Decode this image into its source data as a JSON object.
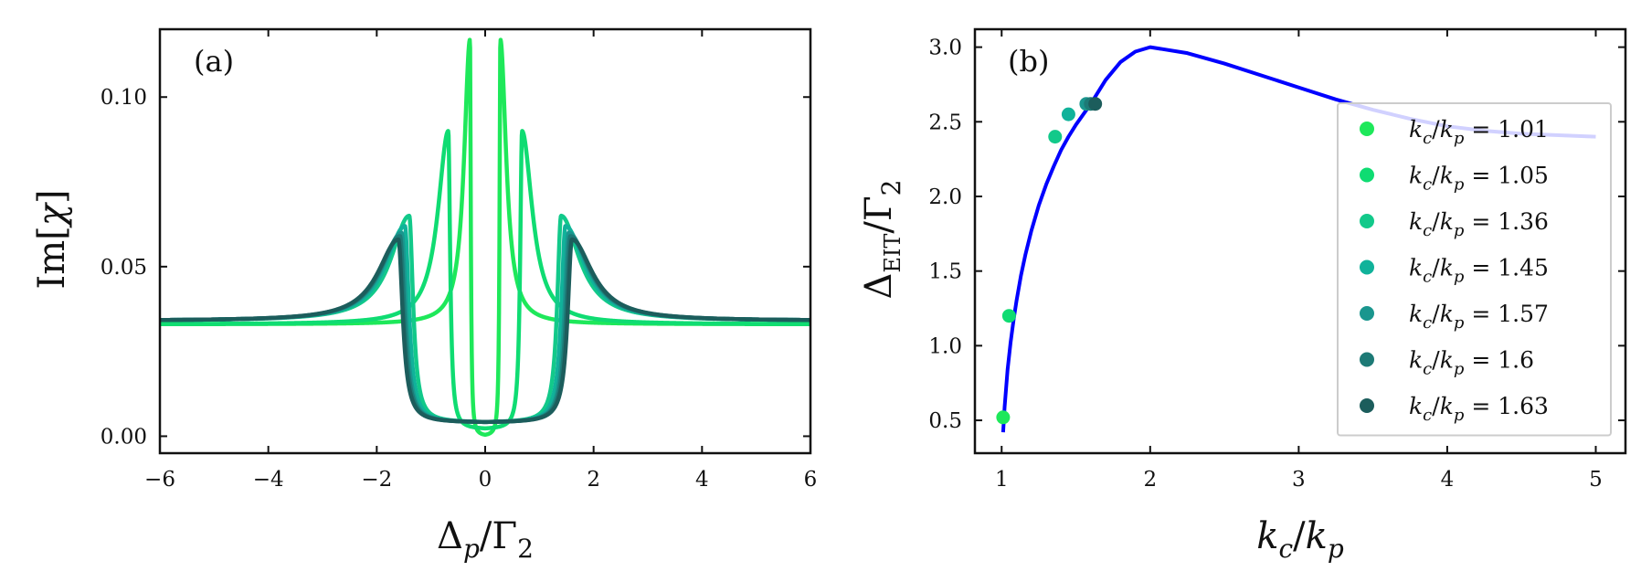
{
  "chart_data": [
    {
      "type": "line",
      "panel_label": "(a)",
      "xlabel": "Δp/Γ2",
      "ylabel": "Im[χ]",
      "xlim": [
        -6,
        6
      ],
      "ylim": [
        -0.005,
        0.12
      ],
      "xticks": [
        -6,
        -4,
        -2,
        0,
        2,
        4,
        6
      ],
      "xtick_labels": [
        "−6",
        "−4",
        "−2",
        "0",
        "2",
        "4",
        "6"
      ],
      "yticks": [
        0.0,
        0.05,
        0.1
      ],
      "ytick_labels": [
        "0.00",
        "0.05",
        "0.10"
      ],
      "grid": false,
      "series": [
        {
          "color": "#1ee85a",
          "peak_x": 0.28,
          "peak_y": 0.117,
          "dip_y": 0.0,
          "baseline": 0.033
        },
        {
          "color": "#0fdc72",
          "peak_x": 0.68,
          "peak_y": 0.09,
          "dip_y": 0.002,
          "baseline": 0.033
        },
        {
          "color": "#12c98a",
          "peak_x": 1.4,
          "peak_y": 0.065,
          "dip_y": 0.004,
          "baseline": 0.034
        },
        {
          "color": "#10b29a",
          "peak_x": 1.48,
          "peak_y": 0.062,
          "dip_y": 0.004,
          "baseline": 0.034
        },
        {
          "color": "#1a968e",
          "peak_x": 1.54,
          "peak_y": 0.06,
          "dip_y": 0.004,
          "baseline": 0.034
        },
        {
          "color": "#1d7a76",
          "peak_x": 1.57,
          "peak_y": 0.059,
          "dip_y": 0.004,
          "baseline": 0.034
        },
        {
          "color": "#1c5d5c",
          "peak_x": 1.6,
          "peak_y": 0.058,
          "dip_y": 0.004,
          "baseline": 0.034
        }
      ]
    },
    {
      "type": "line+scatter",
      "panel_label": "(b)",
      "xlabel": "kc/kp",
      "ylabel": "ΔEIT/Γ2",
      "xlim": [
        0.82,
        5.2
      ],
      "ylim": [
        0.28,
        3.12
      ],
      "xticks": [
        1,
        2,
        3,
        4,
        5
      ],
      "xtick_labels": [
        "1",
        "2",
        "3",
        "4",
        "5"
      ],
      "yticks": [
        0.5,
        1.0,
        1.5,
        2.0,
        2.5,
        3.0
      ],
      "ytick_labels": [
        "0.5",
        "1.0",
        "1.5",
        "2.0",
        "2.5",
        "3.0"
      ],
      "grid": false,
      "curve": {
        "color": "#0000ff",
        "x": [
          1.01,
          1.02,
          1.04,
          1.06,
          1.08,
          1.1,
          1.13,
          1.16,
          1.2,
          1.25,
          1.3,
          1.35,
          1.4,
          1.45,
          1.5,
          1.6,
          1.7,
          1.8,
          1.9,
          2.0,
          2.25,
          2.5,
          2.75,
          3.0,
          3.25,
          3.5,
          3.75,
          4.0,
          4.25,
          4.5,
          4.75,
          5.0
        ],
        "y": [
          0.42,
          0.59,
          0.84,
          1.02,
          1.17,
          1.3,
          1.47,
          1.61,
          1.77,
          1.94,
          2.08,
          2.2,
          2.31,
          2.4,
          2.48,
          2.62,
          2.78,
          2.9,
          2.97,
          3.0,
          2.96,
          2.89,
          2.81,
          2.73,
          2.65,
          2.58,
          2.52,
          2.47,
          2.44,
          2.42,
          2.41,
          2.4
        ]
      },
      "points": [
        {
          "x": 1.01,
          "y": 0.52,
          "color": "#1ee85a"
        },
        {
          "x": 1.05,
          "y": 1.2,
          "color": "#0fdc72"
        },
        {
          "x": 1.36,
          "y": 2.4,
          "color": "#12c98a"
        },
        {
          "x": 1.45,
          "y": 2.55,
          "color": "#10b29a"
        },
        {
          "x": 1.57,
          "y": 2.62,
          "color": "#1a968e"
        },
        {
          "x": 1.6,
          "y": 2.62,
          "color": "#1d7a76"
        },
        {
          "x": 1.63,
          "y": 2.62,
          "color": "#1c5d5c"
        }
      ],
      "legend_placement": "lower-right",
      "legend": [
        {
          "lhs": "kc/kp",
          "value": "1.01",
          "color": "#1ee85a"
        },
        {
          "lhs": "kc/kp",
          "value": "1.05",
          "color": "#0fdc72"
        },
        {
          "lhs": "kc/kp",
          "value": "1.36",
          "color": "#12c98a"
        },
        {
          "lhs": "kc/kp",
          "value": "1.45",
          "color": "#10b29a"
        },
        {
          "lhs": "kc/kp",
          "value": "1.57",
          "color": "#1a968e"
        },
        {
          "lhs": "kc/kp",
          "value": "1.6",
          "color": "#1d7a76"
        },
        {
          "lhs": "kc/kp",
          "value": "1.63",
          "color": "#1c5d5c"
        }
      ]
    }
  ]
}
